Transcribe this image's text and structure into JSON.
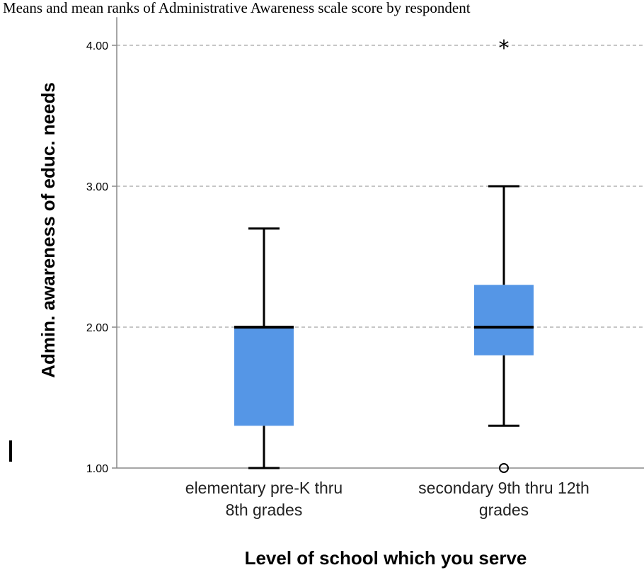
{
  "caption": "Means and mean ranks of Administrative Awareness scale score by respondent",
  "colors": {
    "box_fill": "#5596e6",
    "grid": "#b3b3b3",
    "axis": "#888888",
    "text": "#000000"
  },
  "chart_data": {
    "type": "boxplot",
    "title": "",
    "xlabel": "Level of school which you serve",
    "ylabel": "Admin. awareness of educ. needs",
    "ylim": [
      1.0,
      4.2
    ],
    "yticks": [
      "1.00",
      "2.00",
      "3.00",
      "4.00"
    ],
    "ytick_values": [
      1.0,
      2.0,
      3.0,
      4.0
    ],
    "grid": "horizontal dashed",
    "categories": [
      [
        "elementary pre-K thru",
        "8th grades"
      ],
      [
        "secondary 9th thru 12th",
        "grades"
      ]
    ],
    "boxes": [
      {
        "whisker_low": 1.0,
        "q1": 1.3,
        "median": 2.0,
        "q3": 2.0,
        "whisker_high": 2.7,
        "outliers": [],
        "extremes": []
      },
      {
        "whisker_low": 1.3,
        "q1": 1.8,
        "median": 2.0,
        "q3": 2.3,
        "whisker_high": 3.0,
        "outliers": [
          1.0
        ],
        "extremes": [
          4.0
        ]
      }
    ]
  }
}
